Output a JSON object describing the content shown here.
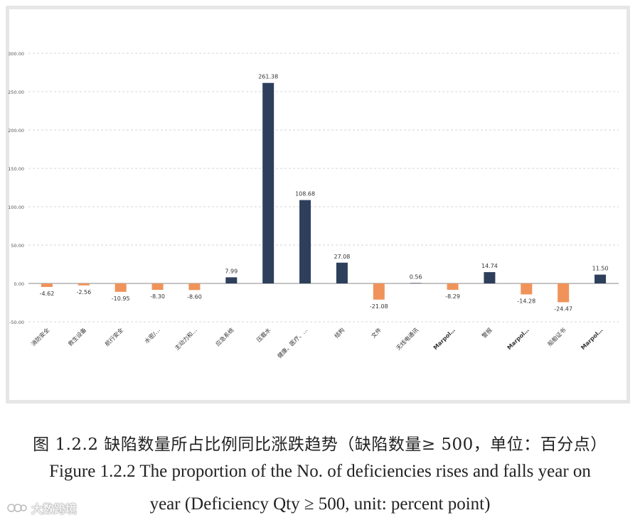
{
  "chart_data": {
    "type": "bar",
    "title": "",
    "xlabel": "",
    "ylabel": "",
    "ylim": [
      -50,
      300
    ],
    "yticks": [
      "300.00",
      "250.00",
      "200.00",
      "150.00",
      "100.00",
      "50.00",
      "0.00",
      "-50.00"
    ],
    "ytick_values": [
      300,
      250,
      200,
      150,
      100,
      50,
      0,
      -50
    ],
    "grid": true,
    "categories": [
      "消防安全",
      "救生设备",
      "航行安全",
      "水密/…",
      "主动力和…",
      "应急系统",
      "压载水",
      "健康、医疗、…",
      "结构",
      "文件",
      "无线电通讯",
      "Marpol…",
      "警报",
      "Marpol…",
      "船舶证书",
      "Marpol…"
    ],
    "values": [
      -4.62,
      -2.56,
      -10.95,
      -8.3,
      -8.6,
      7.99,
      261.38,
      108.68,
      27.08,
      -21.08,
      0.56,
      -8.29,
      14.74,
      -14.28,
      -24.47,
      11.5
    ],
    "value_labels": [
      "-4.62",
      "-2.56",
      "-10.95",
      "-8.30",
      "-8.60",
      "7.99",
      "261.38",
      "108.68",
      "27.08",
      "-21.08",
      "0.56",
      "-8.29",
      "14.74",
      "-14.28",
      "-24.47",
      "11.50"
    ],
    "colors": {
      "positive": "#2e3f5c",
      "negative": "#f0935b",
      "grid": "#c8c8c8",
      "axis": "#8a8a8a",
      "label": "#333333"
    }
  },
  "caption": {
    "cn": "图 1.2.2 缺陷数量所占比例同比涨跌趋势（缺陷数量≥ 500，单位：百分点）",
    "en_line1": "Figure 1.2.2 The proportion of the No. of deficiencies rises and falls year on",
    "en_line2": "year (Deficiency Qty ≥ 500, unit: percent point)"
  },
  "watermark": {
    "text": "大数跨境"
  }
}
